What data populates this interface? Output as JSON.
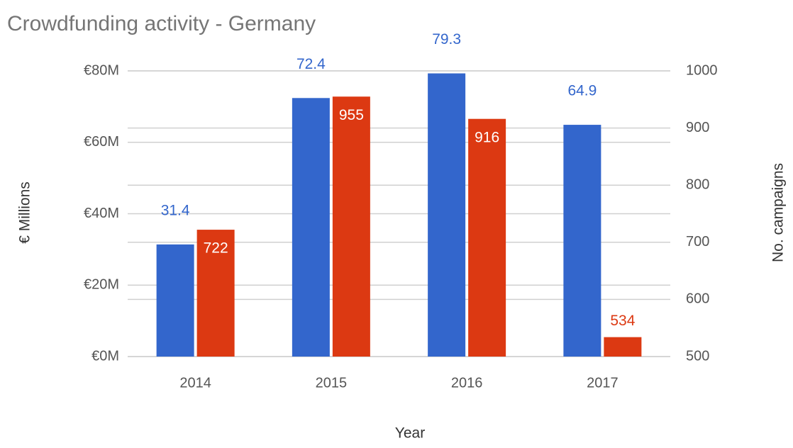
{
  "chart_data": {
    "type": "bar",
    "title": "Crowdfunding activity - Germany",
    "x_label": "Year",
    "y_label": "€ Millions",
    "y2_label": "No. campaigns",
    "categories": [
      "2014",
      "2015",
      "2016",
      "2017"
    ],
    "series": [
      {
        "name": "€ Millions",
        "color": "#3366cc",
        "values": [
          31.4,
          72.4,
          79.3,
          64.9
        ]
      },
      {
        "name": "No. campaigns",
        "color": "#dc3912",
        "axis": "y2",
        "values": [
          722,
          955,
          916,
          534
        ]
      }
    ],
    "ylim": [
      0,
      80
    ],
    "yticks": [
      {
        "value": 0,
        "label": "€0M"
      },
      {
        "value": 20,
        "label": "€20M"
      },
      {
        "value": 40,
        "label": "€40M"
      },
      {
        "value": 60,
        "label": "€60M"
      },
      {
        "value": 80,
        "label": "€80M"
      }
    ],
    "y2lim": [
      500,
      1000
    ],
    "y2ticks": [
      500,
      600,
      700,
      800,
      900,
      1000
    ],
    "grid": true
  }
}
